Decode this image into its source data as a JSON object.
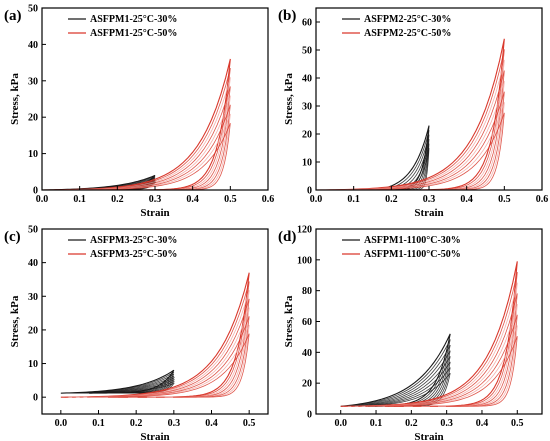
{
  "figure": {
    "colors": {
      "black_series": "#1a1a1a",
      "red_series": "#d9382c",
      "red_light": "#f2a4a0"
    }
  },
  "chart_data": [
    {
      "type": "line",
      "panel_label": "(a)",
      "xlabel": "Strain",
      "ylabel": "Stress, kPa",
      "xlim": [
        0.0,
        0.6
      ],
      "ylim": [
        0,
        50
      ],
      "xticks": [
        "0.0",
        "0.1",
        "0.2",
        "0.3",
        "0.4",
        "0.5",
        "0.6"
      ],
      "yticks": [
        "0",
        "10",
        "20",
        "30",
        "40",
        "50"
      ],
      "legend_position": "top-left",
      "series": [
        {
          "name": "ASFPM1-25°C-30%",
          "color": "black",
          "max_strain": 0.3,
          "peak_stress": 4,
          "cycles": 8
        },
        {
          "name": "ASFPM1-25°C-50%",
          "color": "red",
          "max_strain": 0.5,
          "peak_stress": 36,
          "cycles": 8
        }
      ]
    },
    {
      "type": "line",
      "panel_label": "(b)",
      "xlabel": "Strain",
      "ylabel": "Stress, kPa",
      "xlim": [
        0.0,
        0.6
      ],
      "ylim": [
        0,
        65
      ],
      "xticks": [
        "0.0",
        "0.1",
        "0.2",
        "0.3",
        "0.4",
        "0.5",
        "0.6"
      ],
      "yticks": [
        "0",
        "10",
        "20",
        "30",
        "40",
        "50",
        "60"
      ],
      "legend_position": "top-left",
      "series": [
        {
          "name": "ASFPM2-25°C-30%",
          "color": "black",
          "max_strain": 0.3,
          "peak_stress": 23,
          "cycles": 6
        },
        {
          "name": "ASFPM2-25°C-50%",
          "color": "red",
          "max_strain": 0.5,
          "peak_stress": 54,
          "cycles": 8
        }
      ]
    },
    {
      "type": "line",
      "panel_label": "(c)",
      "xlabel": "Strain",
      "ylabel": "Stress, kPa",
      "xlim": [
        -0.05,
        0.55
      ],
      "ylim": [
        -5,
        50
      ],
      "xticks": [
        "0.0",
        "0.1",
        "0.2",
        "0.3",
        "0.4",
        "0.5"
      ],
      "yticks": [
        "0",
        "10",
        "20",
        "30",
        "40",
        "50"
      ],
      "legend_position": "top-left",
      "series": [
        {
          "name": "ASFPM3-25°C-30%",
          "color": "black",
          "max_strain": 0.3,
          "peak_stress": 8,
          "cycles": 8
        },
        {
          "name": "ASFPM3-25°C-50%",
          "color": "red",
          "max_strain": 0.5,
          "peak_stress": 37,
          "cycles": 8
        }
      ]
    },
    {
      "type": "line",
      "panel_label": "(d)",
      "xlabel": "Strain",
      "ylabel": "Stress, kPa",
      "xlim": [
        -0.07,
        0.57
      ],
      "ylim": [
        0,
        120
      ],
      "xticks": [
        "0.0",
        "0.1",
        "0.2",
        "0.3",
        "0.4",
        "0.5"
      ],
      "yticks": [
        "0",
        "20",
        "40",
        "60",
        "80",
        "100",
        "120"
      ],
      "legend_position": "top-left",
      "series": [
        {
          "name": "ASFPM1-1100°C-30%",
          "color": "black",
          "max_strain": 0.31,
          "peak_stress": 52,
          "cycles": 8
        },
        {
          "name": "ASFPM1-1100°C-50%",
          "color": "red",
          "max_strain": 0.5,
          "peak_stress": 99,
          "cycles": 8
        }
      ]
    }
  ]
}
